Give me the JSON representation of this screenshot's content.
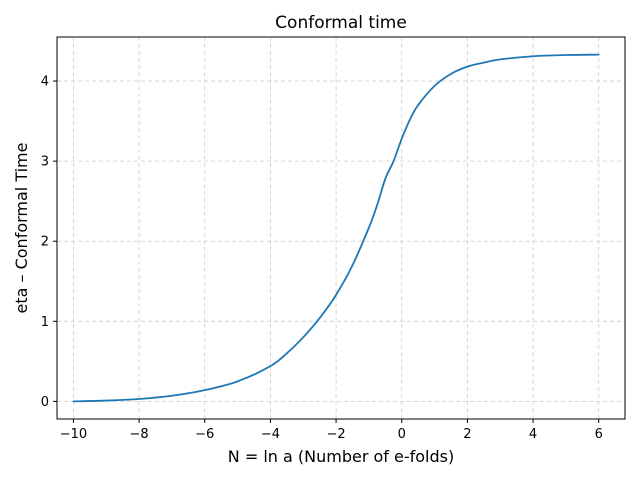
{
  "chart_data": {
    "type": "line",
    "title": "Conformal time",
    "xlabel": "N = ln a (Number of e-folds)",
    "ylabel": "eta – Conformal Time",
    "xlim": [
      -10.5,
      6.8
    ],
    "ylim": [
      -0.22,
      4.55
    ],
    "xticks": [
      -10,
      -8,
      -6,
      -4,
      -2,
      0,
      2,
      4,
      6
    ],
    "xtick_labels": [
      "−10",
      "−8",
      "−6",
      "−4",
      "−2",
      "0",
      "2",
      "4",
      "6"
    ],
    "yticks": [
      0,
      1,
      2,
      3,
      4
    ],
    "ytick_labels": [
      "0",
      "1",
      "2",
      "3",
      "4"
    ],
    "grid": true,
    "legend": "none",
    "colors": {
      "line": "#1f77b4",
      "grid": "#cccccc",
      "axes": "#000000"
    },
    "series": [
      {
        "x": [
          -10,
          -9,
          -8,
          -7,
          -6,
          -5,
          -4,
          -3.5,
          -3,
          -2.5,
          -2,
          -1.5,
          -1,
          -0.75,
          -0.5,
          -0.25,
          0,
          0.25,
          0.5,
          1,
          1.5,
          2,
          2.5,
          3,
          4,
          5,
          6
        ],
        "y": [
          0,
          0.01,
          0.03,
          0.07,
          0.14,
          0.25,
          0.44,
          0.6,
          0.8,
          1.04,
          1.33,
          1.7,
          2.17,
          2.45,
          2.78,
          3.0,
          3.28,
          3.52,
          3.7,
          3.94,
          4.09,
          4.18,
          4.23,
          4.27,
          4.31,
          4.325,
          4.33
        ]
      }
    ]
  }
}
